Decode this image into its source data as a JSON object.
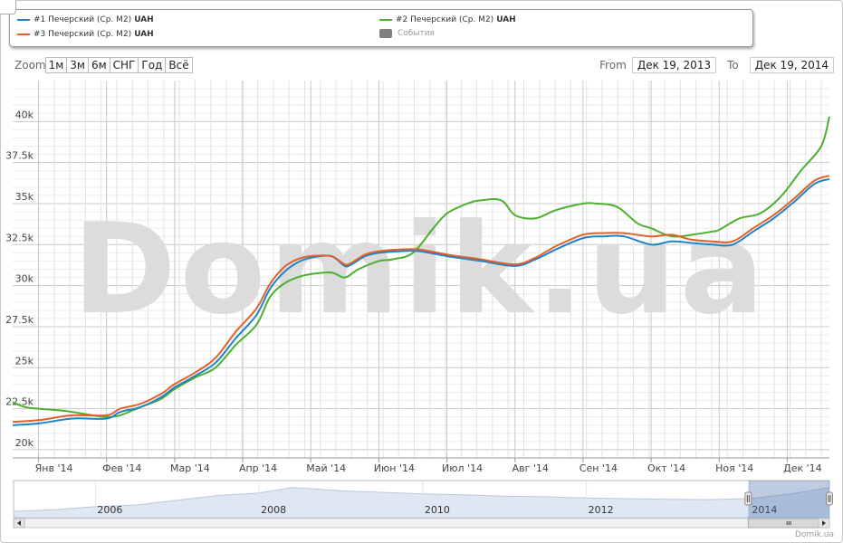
{
  "legend": {
    "items": [
      {
        "label": "#1 Печерский (Ср. М2)",
        "unit": "UAH",
        "color": "#1f83c7"
      },
      {
        "label": "#2 Печерский (Ср. М2)",
        "unit": "UAH",
        "color": "#4caf2f"
      },
      {
        "label": "#3 Печерский (Ср. М2)",
        "unit": "UAH",
        "color": "#e0602a"
      }
    ],
    "events_label": "События"
  },
  "zoom": {
    "label": "Zoom",
    "buttons": [
      "1м",
      "3м",
      "6м",
      "СНГ",
      "Год",
      "Всё"
    ]
  },
  "range": {
    "from_label": "From",
    "from_value": "Дек 19, 2013",
    "to_label": "To",
    "to_value": "Дек 19, 2014"
  },
  "watermark": "Domik.ua",
  "credit": "Domik.ua",
  "chart_data": {
    "type": "line",
    "ylim": [
      19500,
      42500
    ],
    "y_ticks": [
      20000,
      22500,
      25000,
      27500,
      30000,
      32500,
      35000,
      37500,
      40000
    ],
    "y_tick_labels": [
      "20k",
      "22.5k",
      "25k",
      "27.5k",
      "30k",
      "32.5k",
      "35k",
      "37.5k",
      "40k"
    ],
    "x_tick_labels": [
      "Янв '14",
      "Фев '14",
      "Мар '14",
      "Апр '14",
      "Май '14",
      "Июн '14",
      "Июл '14",
      "Авг '14",
      "Сен '14",
      "Окт '14",
      "Ноя '14",
      "Дек '14"
    ],
    "x_tick_months": [
      1,
      2,
      3,
      4,
      5,
      6,
      7,
      8,
      9,
      10,
      11,
      12
    ],
    "x_start_month": 0.62,
    "x_end_month": 12.62,
    "x_unit": "month of 2014 (1 = start of Jan)",
    "series": [
      {
        "color": "#1f83c7",
        "x": [
          0.62,
          1.0,
          1.5,
          2.0,
          2.2,
          2.5,
          2.8,
          3.0,
          3.3,
          3.6,
          3.9,
          4.2,
          4.4,
          4.6,
          4.8,
          5.0,
          5.3,
          5.5,
          5.6,
          5.8,
          6.0,
          6.3,
          6.6,
          7.0,
          7.5,
          8.0,
          8.3,
          8.6,
          9.0,
          9.3,
          9.6,
          10.0,
          10.3,
          10.6,
          10.9,
          11.2,
          11.5,
          11.8,
          12.1,
          12.4,
          12.62
        ],
        "y": [
          21500,
          21600,
          21900,
          21900,
          22300,
          22600,
          23200,
          23800,
          24500,
          25300,
          26800,
          28200,
          29800,
          30800,
          31400,
          31700,
          31800,
          31200,
          31300,
          31800,
          32000,
          32100,
          32100,
          31800,
          31500,
          31200,
          31600,
          32200,
          32900,
          33000,
          33000,
          32500,
          32700,
          32600,
          32500,
          32500,
          33300,
          34100,
          35100,
          36200,
          36500
        ]
      },
      {
        "color": "#4caf2f",
        "x": [
          0.62,
          0.8,
          1.0,
          1.3,
          1.5,
          1.8,
          2.0,
          2.2,
          2.5,
          2.8,
          3.0,
          3.3,
          3.6,
          3.9,
          4.2,
          4.4,
          4.6,
          4.8,
          5.0,
          5.3,
          5.5,
          5.7,
          6.0,
          6.2,
          6.5,
          6.8,
          7.0,
          7.3,
          7.5,
          7.8,
          8.0,
          8.3,
          8.6,
          9.0,
          9.2,
          9.5,
          9.8,
          10.0,
          10.3,
          10.6,
          10.9,
          11.0,
          11.3,
          11.6,
          11.9,
          12.2,
          12.5,
          12.62
        ],
        "y": [
          22900,
          22600,
          22500,
          22400,
          22300,
          22100,
          22000,
          22100,
          22600,
          23100,
          23700,
          24400,
          25000,
          26400,
          27600,
          29300,
          30100,
          30500,
          30700,
          30800,
          30500,
          31000,
          31500,
          31600,
          32000,
          33500,
          34400,
          35000,
          35200,
          35200,
          34300,
          34100,
          34600,
          35000,
          35000,
          34800,
          33800,
          33500,
          33000,
          33100,
          33300,
          33400,
          34100,
          34400,
          35400,
          37000,
          38500,
          40300
        ]
      },
      {
        "color": "#e0602a",
        "x": [
          0.62,
          1.0,
          1.5,
          2.0,
          2.2,
          2.5,
          2.8,
          3.0,
          3.3,
          3.6,
          3.9,
          4.2,
          4.4,
          4.6,
          4.8,
          5.0,
          5.3,
          5.5,
          5.6,
          5.8,
          6.0,
          6.3,
          6.6,
          7.0,
          7.5,
          8.0,
          8.3,
          8.6,
          9.0,
          9.3,
          9.6,
          10.0,
          10.3,
          10.6,
          10.9,
          11.2,
          11.5,
          11.8,
          12.1,
          12.4,
          12.62
        ],
        "y": [
          21700,
          21800,
          22100,
          22100,
          22500,
          22800,
          23400,
          24000,
          24700,
          25600,
          27200,
          28600,
          30100,
          31100,
          31600,
          31800,
          31800,
          31300,
          31400,
          31900,
          32100,
          32200,
          32200,
          31900,
          31600,
          31300,
          31700,
          32400,
          33100,
          33200,
          33200,
          33000,
          33100,
          32800,
          32700,
          32700,
          33500,
          34300,
          35300,
          36400,
          36700
        ]
      }
    ]
  },
  "navigator": {
    "year_labels": [
      "2006",
      "2008",
      "2010",
      "2012",
      "2014"
    ],
    "year_positions": [
      2006,
      2008,
      2010,
      2012,
      2014
    ],
    "year_start": 2005.0,
    "year_end": 2014.97,
    "selected_range": [
      2014.0,
      2014.97
    ],
    "scroll_left_icon": "arrow-left-icon",
    "scroll_right_icon": "arrow-right-icon",
    "scroll_grip_icon": "grip-icon",
    "handle_icon": "drag-handle-icon"
  }
}
